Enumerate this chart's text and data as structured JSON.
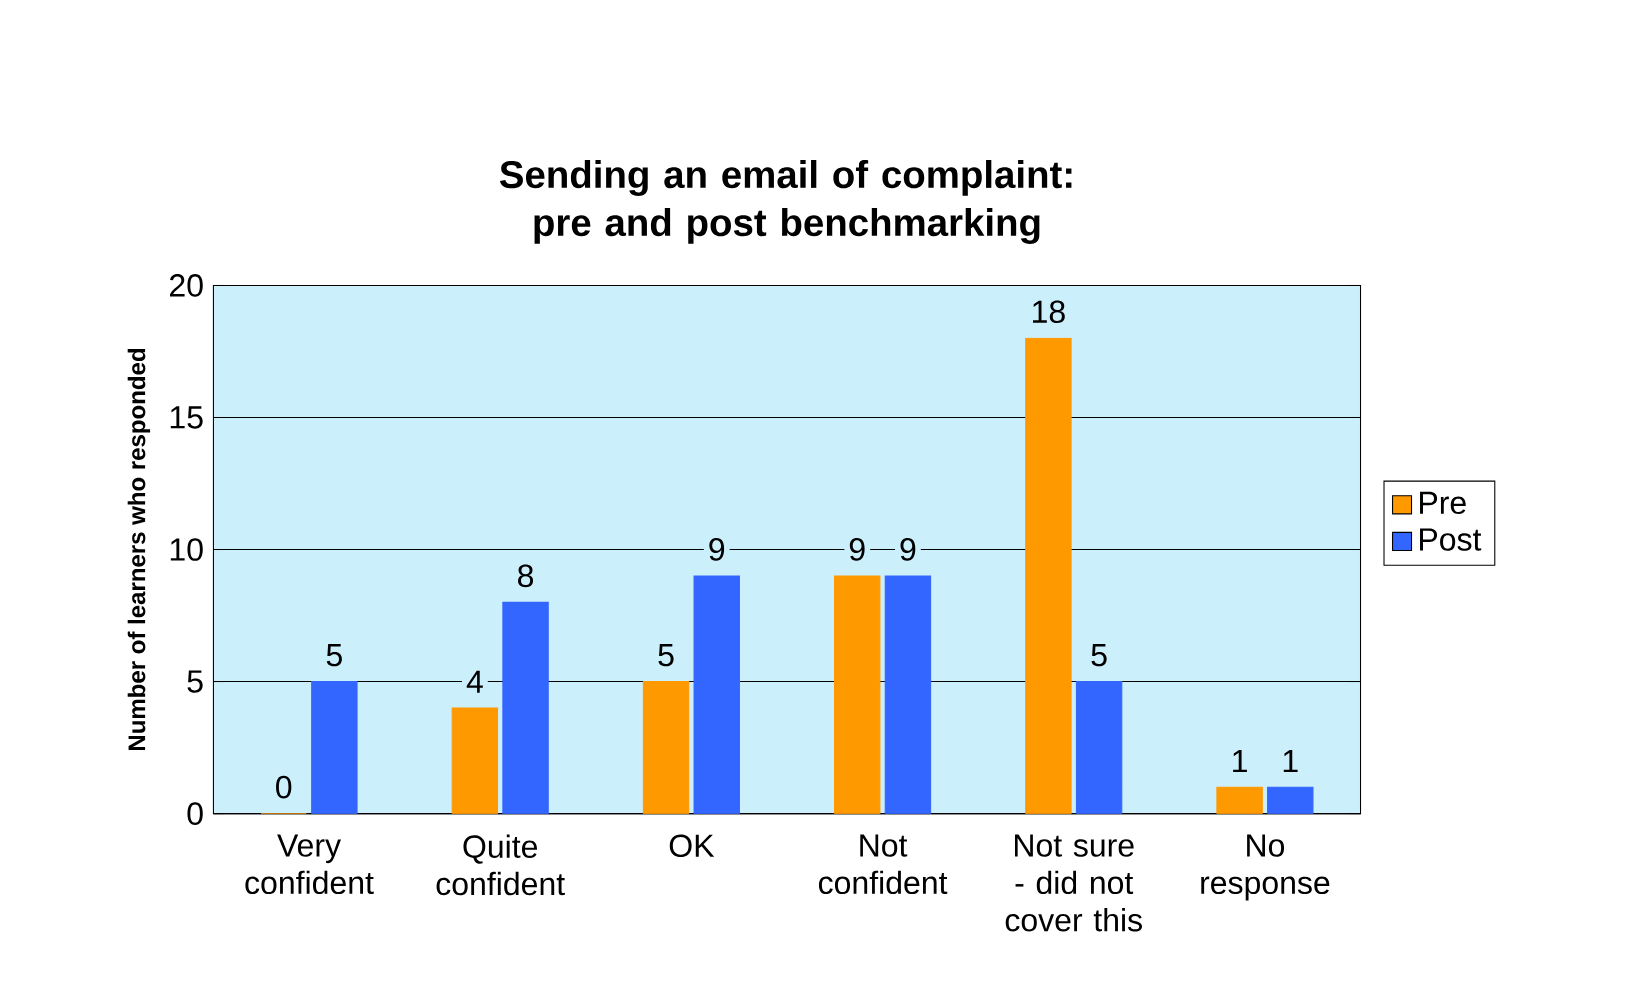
{
  "chart_data": {
    "type": "bar",
    "title": "Sending an email of complaint: pre and post benchmarking",
    "ylabel": "Number of learners who responded",
    "categories": [
      "Very confident",
      "Quite confident",
      "OK",
      "Not confident",
      "Not sure - did not cover this",
      "No response"
    ],
    "series": [
      {
        "name": "Pre",
        "color": "#ff9900",
        "values": [
          0,
          4,
          5,
          9,
          18,
          1
        ]
      },
      {
        "name": "Post",
        "color": "#3366ff",
        "values": [
          5,
          8,
          9,
          9,
          5,
          1
        ]
      }
    ],
    "ylim": [
      0,
      20
    ],
    "yticks": [
      0,
      5,
      10,
      15,
      20
    ],
    "grid": "y",
    "legend": "right",
    "data_labels": true
  }
}
